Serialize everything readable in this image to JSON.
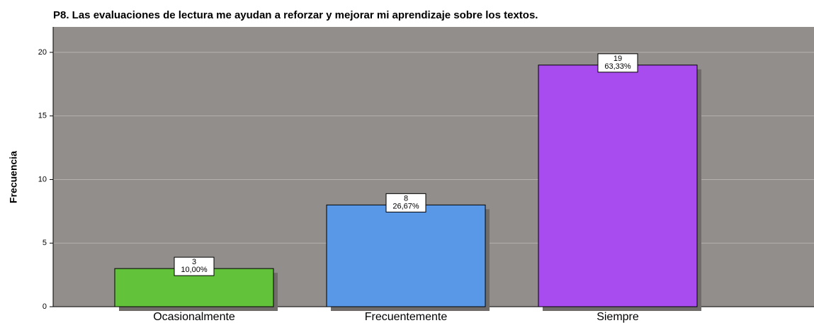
{
  "chart_data": {
    "type": "bar",
    "title": "P8. Las evaluaciones de lectura me ayudan a reforzar y mejorar mi aprendizaje sobre los textos.",
    "y_label": "Frecuencia",
    "categories": [
      "Ocasionalmente",
      "Frecuentemente",
      "Siempre"
    ],
    "values": [
      3,
      8,
      19
    ],
    "percent_labels": [
      "10,00%",
      "26,67%",
      "63,33%"
    ],
    "colors": [
      "#62c23a",
      "#5898e6",
      "#a84cf0"
    ],
    "ylim": [
      0,
      22
    ],
    "yticks": [
      0,
      5,
      10,
      15,
      20
    ],
    "grid": true
  }
}
